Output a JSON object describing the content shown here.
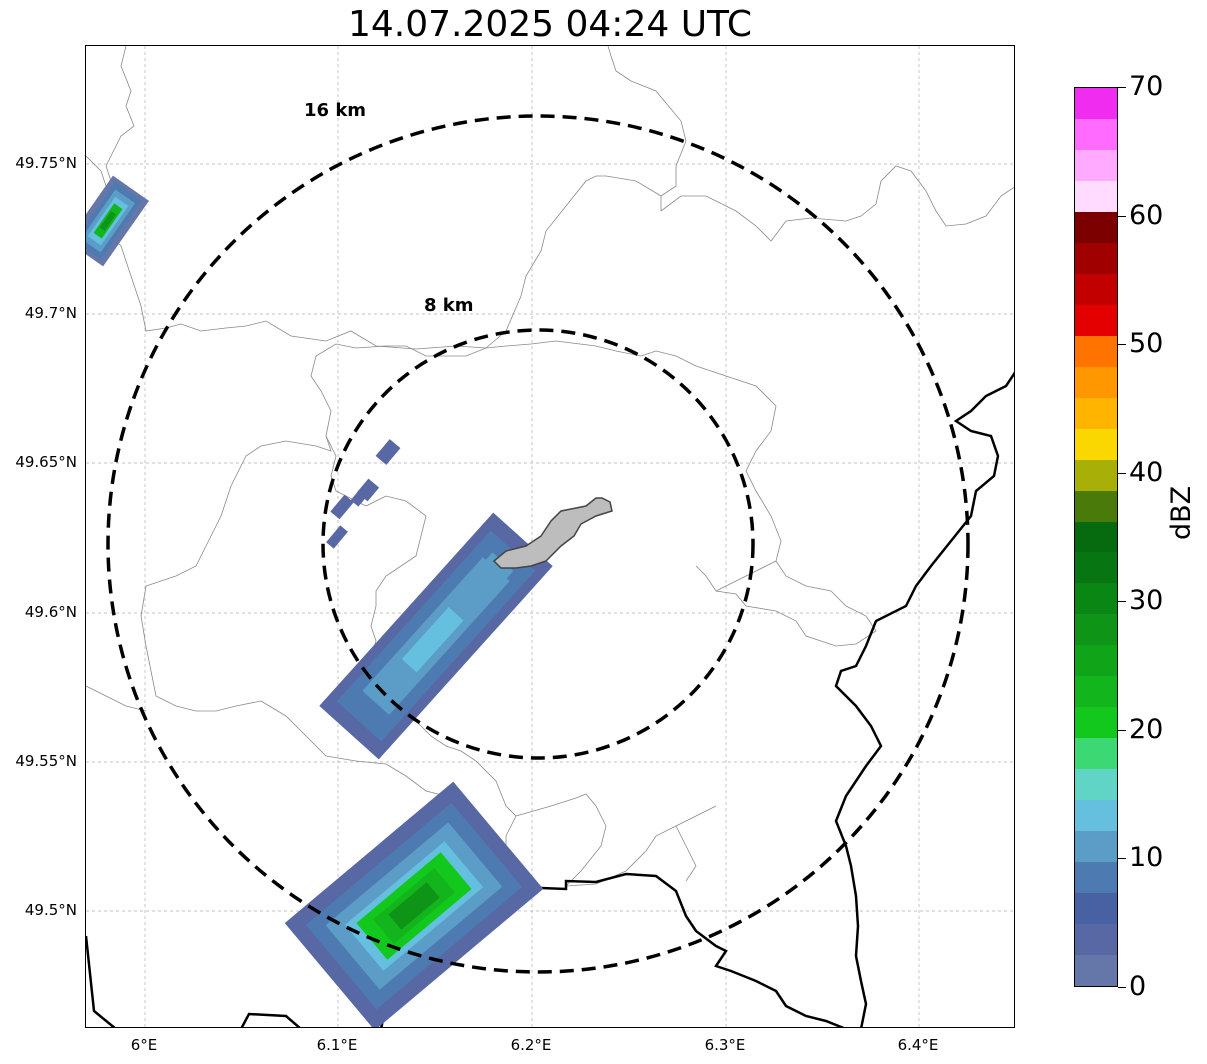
{
  "title": "14.07.2025 04:24 UTC",
  "axes": {
    "lat_labels": [
      "49.75°N",
      "49.7°N",
      "49.65°N",
      "49.6°N",
      "49.55°N",
      "49.5°N"
    ],
    "lon_labels": [
      "6°E",
      "6.1°E",
      "6.2°E",
      "6.3°E",
      "6.4°E"
    ]
  },
  "rings": [
    {
      "label": "16 km",
      "radius_km": 16
    },
    {
      "label": "8 km",
      "radius_km": 8
    }
  ],
  "colorbar": {
    "label": "dBZ",
    "min": 0,
    "max": 70,
    "tick_labels": [
      "0",
      "10",
      "20",
      "30",
      "40",
      "50",
      "60",
      "70"
    ],
    "colors": [
      "#6577a8",
      "#5868a4",
      "#4761a3",
      "#4e7ab2",
      "#5b9dc7",
      "#65bfdf",
      "#60d5c6",
      "#3cd873",
      "#13c81c",
      "#12b61c",
      "#10a418",
      "#0e9416",
      "#0a8614",
      "#077511",
      "#066a0e",
      "#4a7b0a",
      "#a8b008",
      "#fbd700",
      "#ffb400",
      "#ff9700",
      "#ff7300",
      "#e40000",
      "#c20000",
      "#a10000",
      "#7d0000",
      "#ffdbff",
      "#ffaafe",
      "#ff6aff",
      "#ef2cf0"
    ]
  },
  "colors": {
    "border": "#000000",
    "admin_lines": "#8a8a8a",
    "town_fill": "#bdbdbd"
  }
}
